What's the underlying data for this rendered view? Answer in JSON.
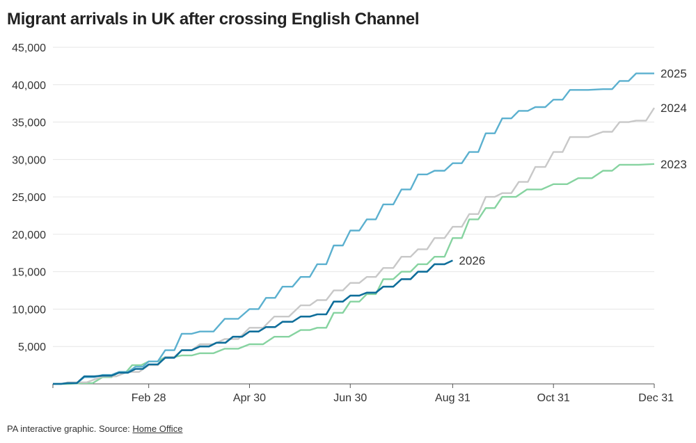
{
  "header": {
    "title": "Migrant arrivals in UK after crossing English Channel"
  },
  "footer": {
    "prefix": "PA interactive graphic. Source: ",
    "source_link": "Home Office"
  },
  "chart_data": {
    "type": "line",
    "title": "Migrant arrivals in UK after crossing English Channel",
    "xlabel": "",
    "ylabel": "",
    "x_ticks": [
      "Feb 28",
      "Apr 30",
      "Jun 30",
      "Aug 31",
      "Oct 31",
      "Dec 31"
    ],
    "y_ticks": [
      "5,000",
      "10,000",
      "15,000",
      "20,000",
      "25,000",
      "30,000",
      "35,000",
      "40,000",
      "45,000"
    ],
    "ylim": [
      0,
      45000
    ],
    "x_domain": [
      "Jan 1",
      "Dec 31"
    ],
    "grid": "horizontal",
    "legend": "direct labels at line ends",
    "series": [
      {
        "name": "2023",
        "color": "#86d3a0",
        "points": [
          [
            "Jan 1",
            0
          ],
          [
            "Jan 18",
            100
          ],
          [
            "Jan 31",
            900
          ],
          [
            "Feb 10",
            1600
          ],
          [
            "Feb 18",
            2500
          ],
          [
            "Feb 28",
            3000
          ],
          [
            "Mar 10",
            3600
          ],
          [
            "Mar 20",
            3800
          ],
          [
            "Mar 31",
            4100
          ],
          [
            "Apr 15",
            4700
          ],
          [
            "Apr 30",
            5300
          ],
          [
            "May 15",
            6300
          ],
          [
            "May 31",
            7200
          ],
          [
            "Jun 10",
            7500
          ],
          [
            "Jun 20",
            9500
          ],
          [
            "Jun 30",
            11000
          ],
          [
            "Jul 10",
            12000
          ],
          [
            "Jul 20",
            14000
          ],
          [
            "Jul 31",
            15000
          ],
          [
            "Aug 10",
            16000
          ],
          [
            "Aug 20",
            17000
          ],
          [
            "Aug 31",
            19500
          ],
          [
            "Sep 10",
            22000
          ],
          [
            "Sep 20",
            23500
          ],
          [
            "Sep 30",
            25000
          ],
          [
            "Oct 15",
            26000
          ],
          [
            "Oct 31",
            26700
          ],
          [
            "Nov 15",
            27500
          ],
          [
            "Nov 30",
            28500
          ],
          [
            "Dec 10",
            29300
          ],
          [
            "Dec 31",
            29400
          ]
        ]
      },
      {
        "name": "2024",
        "color": "#c8c8c8",
        "points": [
          [
            "Jan 1",
            0
          ],
          [
            "Jan 10",
            200
          ],
          [
            "Jan 31",
            1000
          ],
          [
            "Feb 15",
            1600
          ],
          [
            "Feb 28",
            2500
          ],
          [
            "Mar 10",
            3600
          ],
          [
            "Mar 20",
            4500
          ],
          [
            "Mar 31",
            5300
          ],
          [
            "Apr 15",
            6000
          ],
          [
            "Apr 30",
            7500
          ],
          [
            "May 15",
            9000
          ],
          [
            "May 31",
            10500
          ],
          [
            "Jun 10",
            11200
          ],
          [
            "Jun 20",
            12500
          ],
          [
            "Jun 30",
            13500
          ],
          [
            "Jul 10",
            14300
          ],
          [
            "Jul 20",
            15500
          ],
          [
            "Jul 31",
            17000
          ],
          [
            "Aug 10",
            18000
          ],
          [
            "Aug 20",
            19500
          ],
          [
            "Aug 31",
            21000
          ],
          [
            "Sep 10",
            22700
          ],
          [
            "Sep 20",
            25000
          ],
          [
            "Sep 30",
            25500
          ],
          [
            "Oct 10",
            27000
          ],
          [
            "Oct 20",
            29000
          ],
          [
            "Oct 31",
            31000
          ],
          [
            "Nov 10",
            33000
          ],
          [
            "Nov 30",
            33700
          ],
          [
            "Dec 10",
            35000
          ],
          [
            "Dec 20",
            35200
          ],
          [
            "Dec 31",
            36900
          ]
        ]
      },
      {
        "name": "2025",
        "color": "#5bb0cf",
        "points": [
          [
            "Jan 1",
            0
          ],
          [
            "Jan 10",
            100
          ],
          [
            "Jan 20",
            900
          ],
          [
            "Jan 31",
            1200
          ],
          [
            "Feb 10",
            1600
          ],
          [
            "Feb 20",
            2300
          ],
          [
            "Feb 28",
            3000
          ],
          [
            "Mar 10",
            4500
          ],
          [
            "Mar 20",
            6700
          ],
          [
            "Mar 31",
            7000
          ],
          [
            "Apr 15",
            8700
          ],
          [
            "Apr 30",
            10000
          ],
          [
            "May 10",
            11500
          ],
          [
            "May 20",
            13000
          ],
          [
            "May 31",
            14300
          ],
          [
            "Jun 10",
            16000
          ],
          [
            "Jun 20",
            18500
          ],
          [
            "Jun 30",
            20500
          ],
          [
            "Jul 10",
            22000
          ],
          [
            "Jul 20",
            24000
          ],
          [
            "Jul 31",
            26000
          ],
          [
            "Aug 10",
            28000
          ],
          [
            "Aug 20",
            28500
          ],
          [
            "Aug 31",
            29500
          ],
          [
            "Sep 10",
            31000
          ],
          [
            "Sep 20",
            33500
          ],
          [
            "Sep 30",
            35500
          ],
          [
            "Oct 10",
            36500
          ],
          [
            "Oct 20",
            37000
          ],
          [
            "Oct 31",
            38000
          ],
          [
            "Nov 10",
            39300
          ],
          [
            "Nov 30",
            39400
          ],
          [
            "Dec 10",
            40500
          ],
          [
            "Dec 20",
            41500
          ],
          [
            "Dec 31",
            41500
          ]
        ]
      },
      {
        "name": "2026",
        "color": "#0f6e9a",
        "points": [
          [
            "Jan 1",
            0
          ],
          [
            "Jan 10",
            100
          ],
          [
            "Jan 20",
            1000
          ],
          [
            "Jan 31",
            1100
          ],
          [
            "Feb 10",
            1500
          ],
          [
            "Feb 20",
            2000
          ],
          [
            "Feb 28",
            2600
          ],
          [
            "Mar 10",
            3500
          ],
          [
            "Mar 20",
            4500
          ],
          [
            "Mar 31",
            5000
          ],
          [
            "Apr 10",
            5500
          ],
          [
            "Apr 20",
            6300
          ],
          [
            "Apr 30",
            7000
          ],
          [
            "May 10",
            7600
          ],
          [
            "May 20",
            8300
          ],
          [
            "May 31",
            9000
          ],
          [
            "Jun 10",
            9300
          ],
          [
            "Jun 20",
            11000
          ],
          [
            "Jun 30",
            11800
          ],
          [
            "Jul 10",
            12200
          ],
          [
            "Jul 20",
            13000
          ],
          [
            "Jul 31",
            14000
          ],
          [
            "Aug 10",
            15000
          ],
          [
            "Aug 20",
            16000
          ],
          [
            "Aug 31",
            16500
          ]
        ]
      }
    ]
  }
}
